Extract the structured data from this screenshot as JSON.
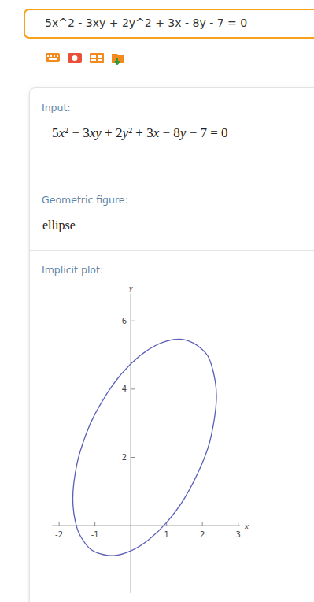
{
  "input_box": {
    "text": "5x^2 - 3xy + 2y^2 + 3x - 8y - 7 = 0"
  },
  "pods": [
    {
      "title": "Input:",
      "content": "5x² − 3xy + 2y² + 3x − 8y − 7 = 0"
    },
    {
      "title": "Geometric figure:",
      "content": "ellipse"
    },
    {
      "title": "Implicit plot:"
    }
  ],
  "chart_data": {
    "type": "line",
    "x_label": "x",
    "y_label": "y",
    "x": [
      -1.618,
      -1.5,
      -1.25,
      -1,
      -0.5,
      0,
      0.5,
      1,
      1.5,
      2,
      2.25,
      2.392,
      2.25,
      2,
      1.5,
      1,
      0.5,
      0,
      -0.5,
      -1,
      -1.25,
      -1.5,
      -1.618
    ],
    "series": [
      {
        "color": "#5b5fb8",
        "values": [
          0.787,
          1.819,
          2.674,
          3.266,
          4.128,
          4.739,
          5.162,
          5.408,
          5.447,
          5.158,
          4.72,
          3.794,
          2.655,
          1.842,
          0.803,
          0.093,
          -0.412,
          -0.739,
          -0.878,
          -0.766,
          -0.549,
          -0.069,
          0.787
        ]
      }
    ],
    "xlim": [
      -2.2,
      3.05
    ],
    "ylim": [
      -1.96,
      6.8
    ],
    "xticks": [
      -2,
      -1,
      1,
      2,
      3
    ],
    "yticks": [
      2,
      4,
      6
    ],
    "grid": false
  }
}
